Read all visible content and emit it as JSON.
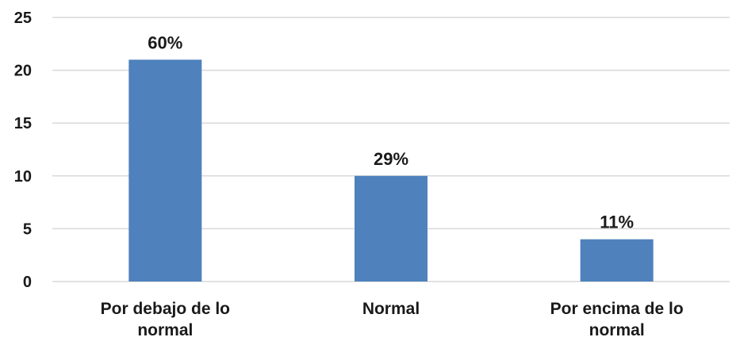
{
  "chart_data": {
    "type": "bar",
    "categories": [
      [
        "Por debajo de lo",
        "normal"
      ],
      [
        "Normal"
      ],
      [
        "Por encima de lo",
        "normal"
      ]
    ],
    "values": [
      21,
      10,
      4
    ],
    "data_labels": [
      "60%",
      "29%",
      "11%"
    ],
    "ylim": [
      0,
      25
    ],
    "yticks": [
      0,
      5,
      10,
      15,
      20,
      25
    ],
    "grid": true,
    "bar_color": "#4f81bd",
    "title": "",
    "xlabel": "",
    "ylabel": ""
  }
}
